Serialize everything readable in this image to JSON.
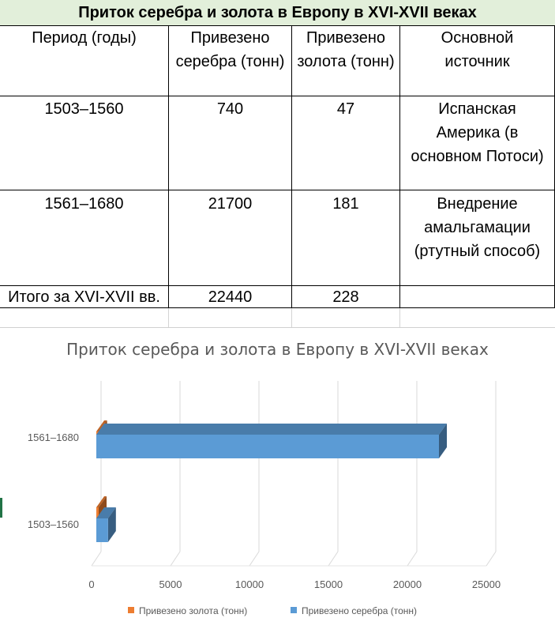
{
  "sheet": {
    "title": "Приток серебра и золота в Европу в XVI-XVII веках",
    "headers": {
      "period": [
        "Период (годы)"
      ],
      "silver": [
        "Привезено",
        "серебра (тонн)"
      ],
      "gold": [
        "Привезено",
        "золота (тонн)"
      ],
      "source": [
        "Основной",
        "источник"
      ]
    },
    "rows": [
      {
        "period": "1503–1560",
        "silver": "740",
        "gold": "47",
        "source": [
          "Испанская",
          "Америка (в",
          "основном Потоси)"
        ]
      },
      {
        "period": "1561–1680",
        "silver": "21700",
        "gold": "181",
        "source": [
          "Внедрение",
          "амальгамации",
          "(ртутный способ)"
        ]
      }
    ],
    "total": {
      "label": "Итого за XVI-XVII вв.",
      "silver": "22440",
      "gold": "228"
    }
  },
  "chart_data": {
    "type": "bar",
    "orientation": "horizontal-3d",
    "title": "Приток серебра и золота в Европу в XVI-XVII веках",
    "categories": [
      "1503–1560",
      "1561–1680"
    ],
    "series": [
      {
        "name": "Привезено серебра (тонн)",
        "values": [
          740,
          21700
        ],
        "color": "#5b9bd5"
      },
      {
        "name": "Привезено золота (тонн)",
        "values": [
          47,
          181
        ],
        "color": "#ed7d31"
      }
    ],
    "xlim": [
      0,
      25000
    ],
    "xticks": [
      "0",
      "5000",
      "10000",
      "15000",
      "20000",
      "25000"
    ],
    "grid": true,
    "legend": "bottom",
    "legend_order": [
      "Привезено золота (тонн)",
      "Привезено серебра (тонн)"
    ]
  }
}
